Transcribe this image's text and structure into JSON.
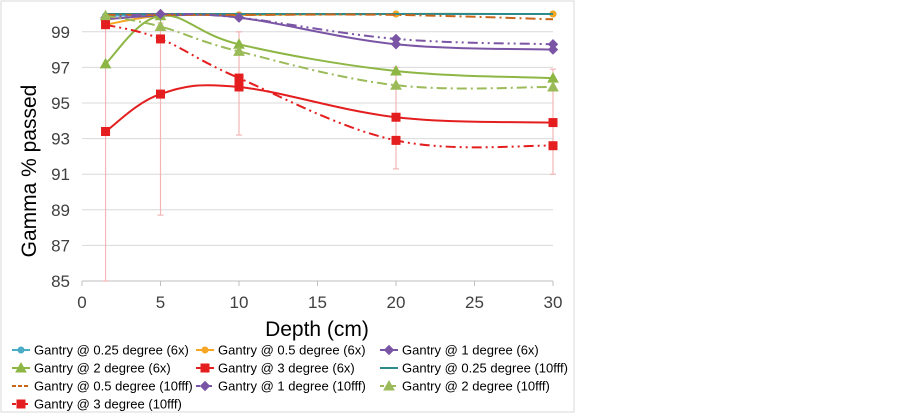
{
  "chart_data": {
    "type": "line",
    "title": "",
    "xlabel": "Depth (cm)",
    "ylabel": "Gamma % passed",
    "xlim": [
      0,
      30
    ],
    "ylim": [
      85,
      100
    ],
    "xticks": [
      "0",
      "5",
      "10",
      "15",
      "20",
      "25",
      "30"
    ],
    "yticks": [
      "85",
      "87",
      "89",
      "91",
      "93",
      "95",
      "97",
      "99"
    ],
    "x": [
      1.5,
      5,
      10,
      20,
      30
    ],
    "series": [
      {
        "name": "Gantry @ 0.25 degree (6x)",
        "values": [
          99.9,
          99.95,
          99.95,
          100.0,
          100.0
        ],
        "color": "#4BACC6",
        "dash": "",
        "marker": "circle",
        "error_low": null,
        "error_high": null
      },
      {
        "name": "Gantry @ 0.5 degree (6x)",
        "values": [
          99.4,
          99.9,
          99.95,
          100.0,
          100.0
        ],
        "color": "#F5A623",
        "dash": "",
        "marker": "circle",
        "error_low": null,
        "error_high": null
      },
      {
        "name": "Gantry @ 1 degree (6x)",
        "values": [
          99.7,
          99.9,
          99.8,
          98.3,
          98.0
        ],
        "color": "#7B55A5",
        "dash": "",
        "marker": "diamond",
        "error_low": null,
        "error_high": null
      },
      {
        "name": "Gantry @ 2 degree (6x)",
        "values": [
          97.2,
          99.9,
          98.3,
          96.8,
          96.4
        ],
        "color": "#8DB645",
        "dash": "",
        "marker": "triangle",
        "error_low": null,
        "error_high": null
      },
      {
        "name": "Gantry @ 3 degree (6x)",
        "values": [
          93.4,
          95.5,
          95.9,
          94.2,
          93.9
        ],
        "color": "#E41E1E",
        "dash": "",
        "marker": "square",
        "error_low": [
          84.8,
          88.7,
          93.2,
          91.3,
          91.0
        ],
        "error_high": [
          99.4,
          99.5,
          99.0,
          97.0,
          96.9
        ]
      },
      {
        "name": "Gantry @ 0.25 degree (10fff)",
        "values": [
          100.0,
          100.0,
          100.0,
          100.0,
          100.0
        ],
        "color": "#2E8B8B",
        "dash": "",
        "marker": "none",
        "error_low": null,
        "error_high": null
      },
      {
        "name": "Gantry @ 0.5 degree (10fff)",
        "values": [
          99.95,
          99.95,
          99.95,
          99.95,
          99.7
        ],
        "color": "#C8651B",
        "dash": "10,4,2,4",
        "marker": "none",
        "error_low": null,
        "error_high": null
      },
      {
        "name": "Gantry @ 1 degree (10fff)",
        "values": [
          99.8,
          100.0,
          99.8,
          98.6,
          98.3
        ],
        "color": "#7B55A5",
        "dash": "10,4,2,4,2,4",
        "marker": "diamond",
        "error_low": null,
        "error_high": null
      },
      {
        "name": "Gantry @ 2 degree (10fff)",
        "values": [
          99.9,
          99.3,
          97.9,
          96.0,
          95.9
        ],
        "color": "#9BBB59",
        "dash": "10,4,2,4",
        "marker": "triangle",
        "error_low": null,
        "error_high": null
      },
      {
        "name": "Gantry @ 3 degree (10fff)",
        "values": [
          99.4,
          98.6,
          96.4,
          92.9,
          92.6
        ],
        "color": "#E41E1E",
        "dash": "10,4,2,4,2,4",
        "marker": "square",
        "error_low": null,
        "error_high": null
      }
    ]
  }
}
